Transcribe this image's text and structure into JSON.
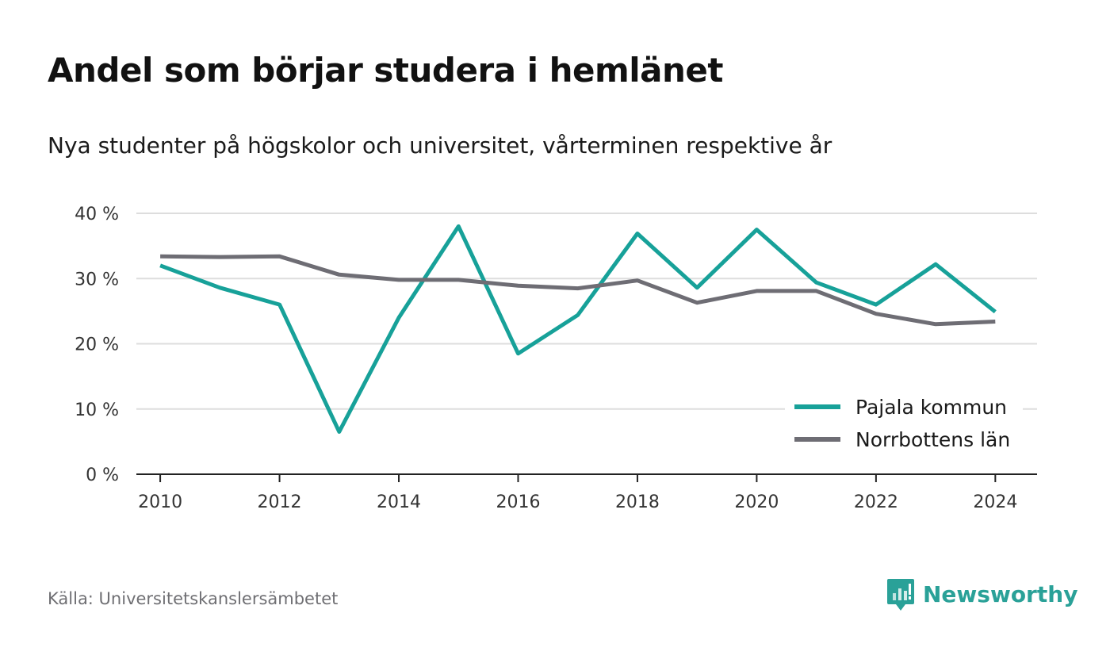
{
  "title": "Andel som börjar studera i hemlänet",
  "subtitle": "Nya studenter på högskolor och universitet, vårterminen respektive år",
  "source": "Källa: Universitetskanslersämbetet",
  "brand": {
    "name": "Newsworthy",
    "icon": "newsworthy-logo-icon",
    "color": "#2aa198"
  },
  "chart_data": {
    "type": "line",
    "x": [
      2010,
      2011,
      2012,
      2013,
      2014,
      2015,
      2016,
      2017,
      2018,
      2019,
      2020,
      2021,
      2022,
      2023,
      2024
    ],
    "xticks": [
      2010,
      2012,
      2014,
      2016,
      2018,
      2020,
      2022,
      2024
    ],
    "xtick_labels": [
      "2010",
      "2012",
      "2014",
      "2016",
      "2018",
      "2020",
      "2022",
      "2024"
    ],
    "yticks": [
      0,
      10,
      20,
      30,
      40
    ],
    "ytick_labels": [
      "0 %",
      "10 %",
      "20 %",
      "30 %",
      "40 %"
    ],
    "ylim": [
      0,
      40
    ],
    "xlim": [
      2009.6,
      2024.7
    ],
    "grid": true,
    "legend_position": "bottom-right",
    "series": [
      {
        "name": "Pajala kommun",
        "color": "#17a199",
        "values": [
          32.0,
          28.6,
          26.0,
          6.5,
          24.0,
          38.0,
          18.5,
          24.4,
          36.9,
          28.6,
          37.5,
          29.4,
          26.0,
          32.2,
          24.9
        ]
      },
      {
        "name": "Norrbottens län",
        "color": "#6e6d74",
        "values": [
          33.4,
          33.3,
          33.4,
          30.6,
          29.8,
          29.8,
          28.9,
          28.5,
          29.7,
          26.3,
          28.1,
          28.1,
          24.6,
          23.0,
          23.4
        ]
      }
    ]
  }
}
